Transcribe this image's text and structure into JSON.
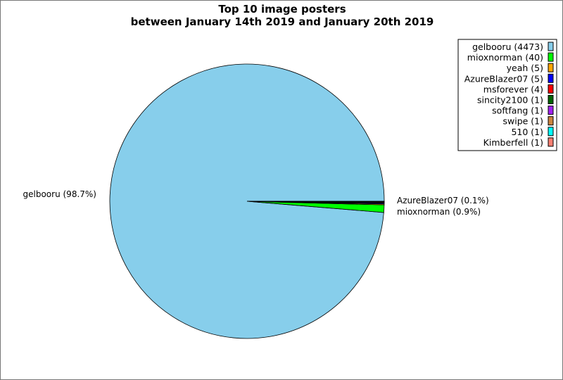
{
  "chart_data": {
    "type": "pie",
    "title": "Top 10 image posters",
    "subtitle": "between January 14th 2019 and January 20th 2019",
    "legend_position": "top-right",
    "slices": [
      {
        "label": "gelbooru",
        "value": 4473,
        "color": "#87ceeb",
        "legend": "gelbooru (4473)",
        "slice_label": "gelbooru (98.7%)"
      },
      {
        "label": "mioxnorman",
        "value": 40,
        "color": "#00ff00",
        "legend": "mioxnorman (40)",
        "slice_label": "mioxnorman (0.9%)"
      },
      {
        "label": "yeah",
        "value": 5,
        "color": "#ffa500",
        "legend": "yeah (5)",
        "slice_label": ""
      },
      {
        "label": "AzureBlazer07",
        "value": 5,
        "color": "#0000ff",
        "legend": "AzureBlazer07 (5)",
        "slice_label": "AzureBlazer07 (0.1%)"
      },
      {
        "label": "msforever",
        "value": 4,
        "color": "#ff0000",
        "legend": "msforever (4)",
        "slice_label": ""
      },
      {
        "label": "sincity2100",
        "value": 1,
        "color": "#006400",
        "legend": "sincity2100 (1)",
        "slice_label": ""
      },
      {
        "label": "softfang",
        "value": 1,
        "color": "#a020f0",
        "legend": "softfang (1)",
        "slice_label": ""
      },
      {
        "label": "swipe",
        "value": 1,
        "color": "#cd853f",
        "legend": "swipe (1)",
        "slice_label": ""
      },
      {
        "label": "510",
        "value": 1,
        "color": "#00ffff",
        "legend": "510 (1)",
        "slice_label": ""
      },
      {
        "label": "Kimberfell",
        "value": 1,
        "color": "#fa8072",
        "legend": "Kimberfell (1)",
        "slice_label": ""
      }
    ]
  }
}
